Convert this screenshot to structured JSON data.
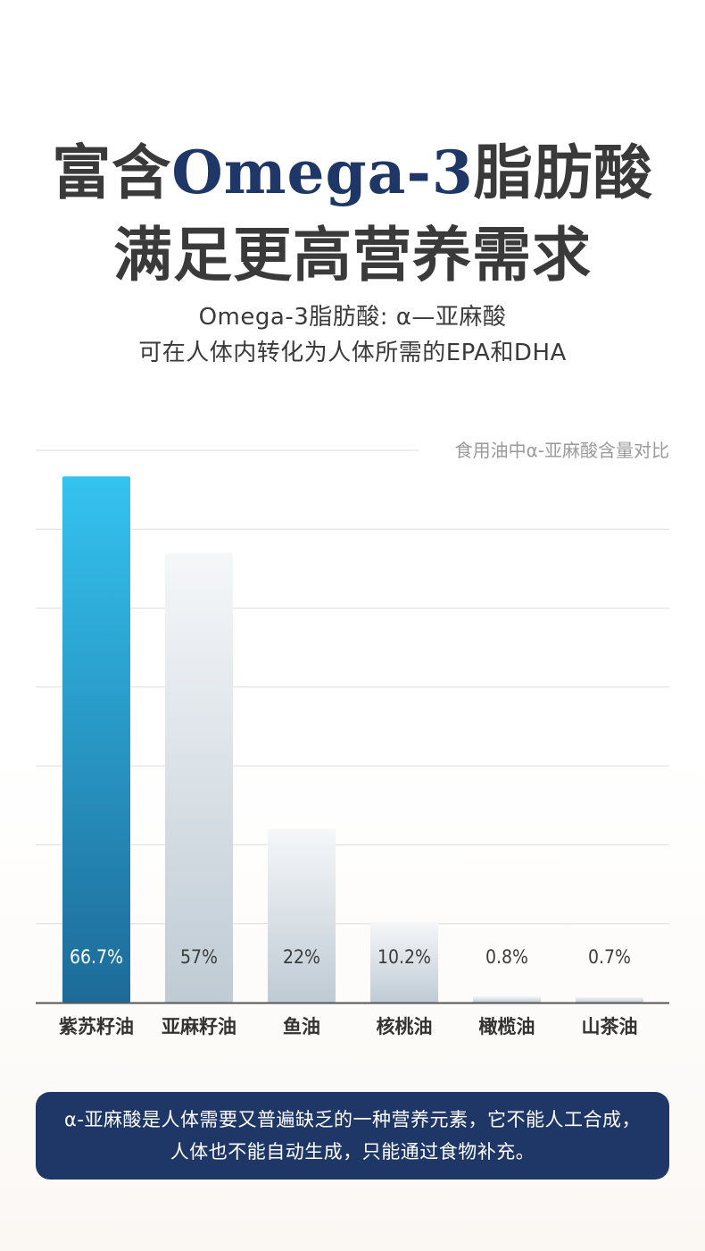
{
  "headline": {
    "line1_pre": "富含",
    "line1_accent": "Omega-3",
    "line1_post": "脂肪酸",
    "line2": "满足更高营养需求"
  },
  "subtitle": {
    "line1": "Omega-3脂肪酸: α—亚麻酸",
    "line2": "可在人体内转化为人体所需的EPA和DHA"
  },
  "chart_data": {
    "type": "bar",
    "title": "食用油中α-亚麻酸含量对比",
    "categories": [
      "紫苏籽油",
      "亚麻籽油",
      "鱼油",
      "核桃油",
      "橄榄油",
      "山茶油"
    ],
    "values": [
      66.7,
      57,
      22,
      10.2,
      0.8,
      0.7
    ],
    "value_labels": [
      "66.7%",
      "57%",
      "22%",
      "10.2%",
      "0.8%",
      "0.7%"
    ],
    "ylim": [
      0,
      70
    ],
    "grid": true,
    "highlight_index": 0,
    "colors": {
      "highlight_top": "#34c3f0",
      "highlight_bottom": "#1d6a98",
      "bar_top": "#f5f7f9",
      "bar_bottom": "#bfcbd4",
      "grid": "#dddddd",
      "axis": "#555555",
      "value_text_light": "#ffffff",
      "value_text_dark": "#3c3c3c"
    }
  },
  "note": {
    "line1": "α-亚麻酸是人体需要又普遍缺乏的一种营养元素，它不能人工合成，",
    "line2": "人体也不能自动生成，只能通过食物补充。",
    "background": "#1f3766"
  }
}
